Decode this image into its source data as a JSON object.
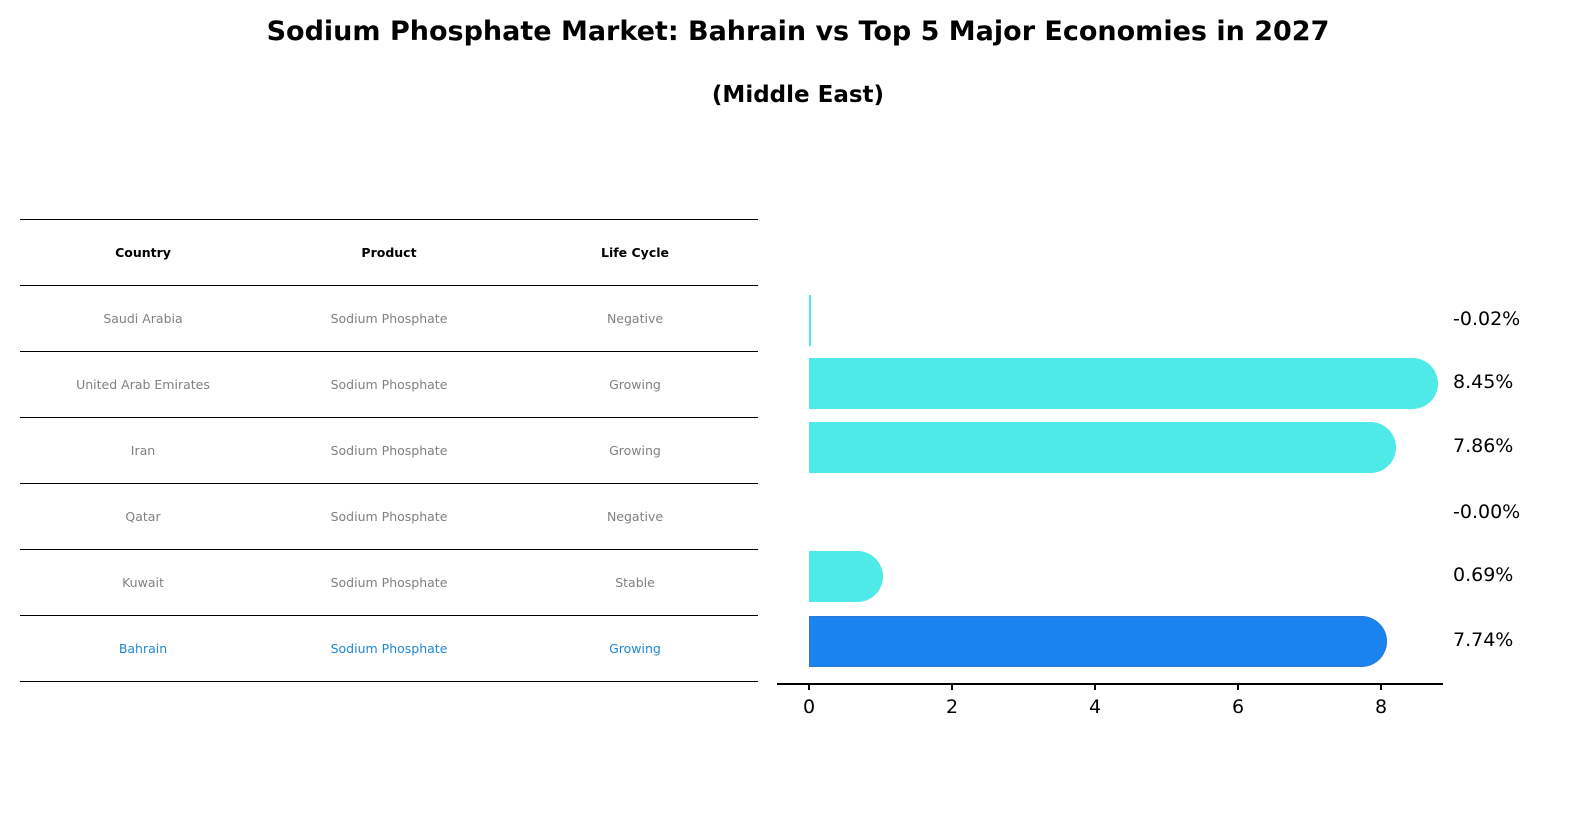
{
  "title": "Sodium Phosphate Market: Bahrain vs Top 5 Major Economies in 2027",
  "subtitle": "(Middle East)",
  "table": {
    "headers": [
      "Country",
      "Product",
      "Life Cycle"
    ],
    "rows": [
      [
        "Saudi Arabia",
        "Sodium Phosphate",
        "Negative"
      ],
      [
        "United Arab Emirates",
        "Sodium Phosphate",
        "Growing"
      ],
      [
        "Iran",
        "Sodium Phosphate",
        "Growing"
      ],
      [
        "Qatar",
        "Sodium Phosphate",
        "Negative"
      ],
      [
        "Kuwait",
        "Sodium Phosphate",
        "Stable"
      ],
      [
        "Bahrain",
        "Sodium Phosphate",
        "Growing"
      ]
    ],
    "highlight_row": 5,
    "highlight_color": "#1f88d6"
  },
  "chart_data": {
    "type": "bar",
    "orientation": "horizontal",
    "title": "Sodium Phosphate Market: Bahrain vs Top 5 Major Economies in 2027",
    "subtitle": "(Middle East)",
    "categories": [
      "Saudi Arabia",
      "United Arab Emirates",
      "Iran",
      "Qatar",
      "Kuwait",
      "Bahrain"
    ],
    "values": [
      -0.02,
      8.45,
      7.86,
      -0.0,
      0.69,
      7.74
    ],
    "value_labels": [
      "-0.02%",
      "8.45%",
      "7.86%",
      "-0.00%",
      "0.69%",
      "7.74%"
    ],
    "colors": [
      "#4deae8",
      "#4deae8",
      "#4deae8",
      "#4deae8",
      "#4deae8",
      "#1a83f0"
    ],
    "highlight": "Bahrain",
    "xlabel": "",
    "ylabel": "",
    "xticks": [
      "0",
      "2",
      "4",
      "6",
      "8"
    ],
    "xlim": [
      -0.45,
      8.85
    ],
    "grid": false,
    "legend": null
  }
}
